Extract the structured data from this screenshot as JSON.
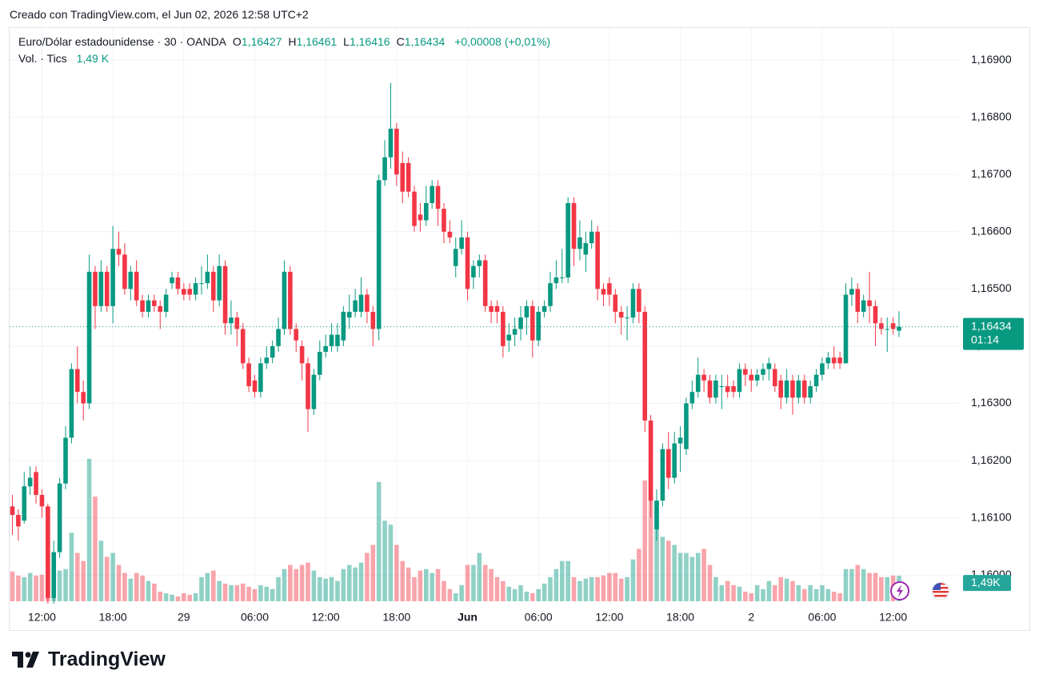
{
  "header": {
    "created": "Creado con TradingView.com, el Jun 02, 2026 12:58 UTC+2",
    "brand": "TradingView"
  },
  "chart_data": {
    "type": "candlestick",
    "title": "Euro/Dólar estadounidense · 30 · OANDA",
    "ohlc_legend": [
      {
        "key": "O",
        "value": "1,16427"
      },
      {
        "key": "H",
        "value": "1,16461"
      },
      {
        "key": "L",
        "value": "1,16416"
      },
      {
        "key": "C",
        "value": "1,16434"
      }
    ],
    "change": "+0,00008 (+0,01%)",
    "volume_title": "Vol. · Tics",
    "volume_legend": "1,49 K",
    "last_price_label": "1,16434",
    "countdown": "01:14",
    "last_volume_label": "1,49K",
    "up_color": "#089981",
    "down_color": "#f23645",
    "grid": true,
    "categories": [
      null,
      null,
      null,
      null,
      null,
      "12:00",
      null,
      null,
      null,
      null,
      null,
      null,
      null,
      null,
      null,
      null,
      null,
      "18:00",
      null,
      null,
      null,
      null,
      null,
      null,
      null,
      null,
      null,
      null,
      null,
      "29",
      null,
      null,
      null,
      null,
      null,
      null,
      null,
      null,
      null,
      null,
      null,
      "06:00",
      null,
      null,
      null,
      null,
      null,
      null,
      null,
      null,
      null,
      null,
      null,
      "12:00",
      null,
      null,
      null,
      null,
      null,
      null,
      null,
      null,
      null,
      null,
      null,
      "18:00",
      null,
      null,
      null,
      null,
      null,
      null,
      null,
      null,
      null,
      null,
      null,
      "Jun",
      null,
      null,
      null,
      null,
      null,
      null,
      null,
      null,
      null,
      null,
      null,
      "06:00",
      null,
      null,
      null,
      null,
      null,
      null,
      null,
      null,
      null,
      null,
      null,
      "12:00",
      null,
      null,
      null,
      null,
      null,
      null,
      null,
      null,
      null,
      null,
      null,
      "18:00",
      null,
      null,
      null,
      null,
      null,
      null,
      null,
      null,
      null,
      null,
      null,
      "2",
      null,
      null,
      null,
      null,
      null,
      null,
      null,
      null,
      null,
      null,
      null,
      "06:00",
      null,
      null,
      null,
      null,
      null,
      null,
      null,
      null,
      null,
      null,
      null,
      "12:00",
      null
    ],
    "open": [
      1.1612,
      1.16105,
      1.16095,
      1.16155,
      1.1618,
      1.1614,
      1.1612,
      1.1596,
      1.1604,
      1.1616,
      1.1624,
      1.1636,
      1.1632,
      1.163,
      1.1653,
      1.1647,
      1.1653,
      1.1647,
      1.1657,
      1.1656,
      1.165,
      1.1653,
      1.1648,
      1.1646,
      1.1648,
      1.1647,
      1.1646,
      1.1651,
      1.1652,
      1.165,
      1.165,
      1.1649,
      1.1651,
      1.1651,
      1.1653,
      1.1648,
      1.1654,
      1.1644,
      1.1645,
      1.1643,
      1.1637,
      1.1634,
      1.1632,
      1.1637,
      1.1638,
      1.164,
      1.1643,
      1.1653,
      1.1643,
      1.164,
      1.1637,
      1.1629,
      1.1635,
      1.1639,
      1.164,
      1.164,
      1.1641,
      1.1645,
      1.1646,
      1.1646,
      1.1649,
      1.1646,
      1.1643,
      1.1669,
      1.1673,
      1.1678,
      1.1672,
      1.1672,
      1.1667,
      1.1663,
      1.1662,
      1.1665,
      1.1668,
      1.1664,
      1.166,
      1.1654,
      1.1657,
      1.1659,
      1.1652,
      1.1654,
      1.1655,
      1.1647,
      1.1647,
      1.1646,
      1.1641,
      1.1642,
      1.1643,
      1.1645,
      1.1647,
      1.1641,
      1.1646,
      1.1647,
      1.1651,
      1.1652,
      1.1652,
      1.1665,
      1.1657,
      1.1656,
      1.1658,
      1.166,
      1.165,
      1.1651,
      1.1649,
      1.1646,
      1.1645,
      1.1645,
      1.165,
      1.1646,
      1.1627,
      1.1608,
      1.1613,
      1.1622,
      1.1617,
      1.1623,
      1.1622,
      1.163,
      1.1632,
      1.1635,
      1.1634,
      1.1631,
      1.1633,
      1.1633,
      1.1633,
      1.1632,
      1.1636,
      1.1635,
      1.1634,
      1.1635,
      1.1636,
      1.1636,
      1.1634,
      1.1631,
      1.1634,
      1.1631,
      1.1634,
      1.1631,
      1.1633,
      1.1635,
      1.1637,
      1.1638,
      1.1638,
      1.1637,
      1.1649,
      1.165,
      1.1646,
      1.1648,
      1.1647,
      1.1644,
      1.1643,
      1.1644,
      1.16427
    ],
    "high": [
      1.1614,
      1.16115,
      1.1618,
      1.1619,
      1.1619,
      1.1615,
      1.16125,
      1.1606,
      1.1617,
      1.1626,
      1.1637,
      1.164,
      1.1634,
      1.1656,
      1.1654,
      1.1655,
      1.1654,
      1.1661,
      1.166,
      1.1658,
      1.1654,
      1.1655,
      1.1649,
      1.1649,
      1.1649,
      1.1648,
      1.165,
      1.1653,
      1.1653,
      1.1651,
      1.1651,
      1.1652,
      1.1654,
      1.1656,
      1.1654,
      1.1656,
      1.1655,
      1.1648,
      1.1646,
      1.1644,
      1.1638,
      1.1635,
      1.1638,
      1.164,
      1.1641,
      1.1645,
      1.1655,
      1.1654,
      1.1644,
      1.1641,
      1.1638,
      1.1636,
      1.1641,
      1.1642,
      1.1644,
      1.1644,
      1.1647,
      1.1649,
      1.165,
      1.1652,
      1.165,
      1.1647,
      1.167,
      1.1676,
      1.1686,
      1.1679,
      1.1674,
      1.1673,
      1.1668,
      1.1665,
      1.1668,
      1.1669,
      1.1669,
      1.1665,
      1.1662,
      1.1659,
      1.1662,
      1.166,
      1.1655,
      1.1656,
      1.1656,
      1.1648,
      1.1648,
      1.1647,
      1.1644,
      1.1645,
      1.1647,
      1.1648,
      1.1648,
      1.1647,
      1.1648,
      1.1653,
      1.1655,
      1.1657,
      1.1666,
      1.1666,
      1.1662,
      1.166,
      1.1662,
      1.1661,
      1.1651,
      1.1652,
      1.165,
      1.1647,
      1.1647,
      1.1651,
      1.1651,
      1.1647,
      1.1628,
      1.1615,
      1.1623,
      1.1625,
      1.1625,
      1.1626,
      1.1631,
      1.1634,
      1.1638,
      1.1636,
      1.1635,
      1.1635,
      1.1635,
      1.1635,
      1.1634,
      1.1637,
      1.1637,
      1.1636,
      1.1636,
      1.1637,
      1.1638,
      1.1637,
      1.1635,
      1.1636,
      1.1635,
      1.1635,
      1.1635,
      1.1634,
      1.1636,
      1.1638,
      1.1639,
      1.164,
      1.1639,
      1.1651,
      1.1652,
      1.1651,
      1.1649,
      1.1653,
      1.1648,
      1.1645,
      1.1645,
      1.1645,
      1.16461
    ],
    "low": [
      1.1607,
      1.1606,
      1.1609,
      1.1614,
      1.16125,
      1.161,
      1.1595,
      1.1595,
      1.1603,
      1.1615,
      1.1623,
      1.163,
      1.1627,
      1.1629,
      1.1643,
      1.1646,
      1.1646,
      1.1644,
      1.1654,
      1.1649,
      1.1648,
      1.1647,
      1.1645,
      1.1645,
      1.1646,
      1.1643,
      1.1645,
      1.165,
      1.1649,
      1.1648,
      1.1648,
      1.1648,
      1.1649,
      1.165,
      1.1646,
      1.1647,
      1.1642,
      1.1642,
      1.164,
      1.1636,
      1.1632,
      1.1631,
      1.1631,
      1.1636,
      1.1637,
      1.1639,
      1.1642,
      1.1642,
      1.1639,
      1.1634,
      1.1625,
      1.1628,
      1.1634,
      1.1638,
      1.1639,
      1.1639,
      1.164,
      1.1643,
      1.1645,
      1.1645,
      1.1644,
      1.164,
      1.1641,
      1.1668,
      1.1671,
      1.1668,
      1.1665,
      1.1666,
      1.166,
      1.166,
      1.1661,
      1.1664,
      1.1661,
      1.1658,
      1.1658,
      1.1652,
      1.1656,
      1.1648,
      1.165,
      1.1652,
      1.1646,
      1.1644,
      1.1644,
      1.1638,
      1.1639,
      1.164,
      1.1641,
      1.1642,
      1.1638,
      1.164,
      1.1645,
      1.1646,
      1.165,
      1.1651,
      1.1651,
      1.1654,
      1.1655,
      1.1653,
      1.1657,
      1.1648,
      1.1647,
      1.1647,
      1.1644,
      1.1642,
      1.1641,
      1.1644,
      1.1644,
      1.1625,
      1.161,
      1.1606,
      1.1612,
      1.1615,
      1.1616,
      1.1618,
      1.1621,
      1.1629,
      1.1631,
      1.1632,
      1.163,
      1.163,
      1.1629,
      1.1631,
      1.1631,
      1.1631,
      1.1633,
      1.1632,
      1.1633,
      1.1634,
      1.1634,
      1.1632,
      1.1629,
      1.163,
      1.1628,
      1.163,
      1.163,
      1.163,
      1.1632,
      1.1634,
      1.1636,
      1.1636,
      1.1636,
      1.1637,
      1.1647,
      1.1644,
      1.1645,
      1.1644,
      1.164,
      1.1642,
      1.1639,
      1.1642,
      1.16416
    ],
    "close": [
      1.16105,
      1.16085,
      1.16155,
      1.1617,
      1.1614,
      1.1612,
      1.1596,
      1.1604,
      1.1616,
      1.1624,
      1.1636,
      1.1632,
      1.163,
      1.1653,
      1.1647,
      1.1653,
      1.1647,
      1.1657,
      1.1656,
      1.165,
      1.1653,
      1.1648,
      1.1646,
      1.1648,
      1.1647,
      1.1646,
      1.1649,
      1.1652,
      1.165,
      1.1649,
      1.1649,
      1.1651,
      1.1651,
      1.1653,
      1.1648,
      1.1654,
      1.1644,
      1.1645,
      1.1643,
      1.1637,
      1.1633,
      1.1632,
      1.1637,
      1.1638,
      1.164,
      1.1643,
      1.1653,
      1.1643,
      1.1641,
      1.1637,
      1.1629,
      1.1635,
      1.1639,
      1.164,
      1.1642,
      1.1642,
      1.1646,
      1.1646,
      1.1648,
      1.1649,
      1.1646,
      1.1643,
      1.1669,
      1.1673,
      1.1678,
      1.167,
      1.1667,
      1.1667,
      1.1661,
      1.1662,
      1.1665,
      1.1668,
      1.1664,
      1.166,
      1.1659,
      1.1657,
      1.1659,
      1.165,
      1.1654,
      1.1655,
      1.1647,
      1.1646,
      1.1646,
      1.164,
      1.1642,
      1.1643,
      1.1645,
      1.1647,
      1.1641,
      1.1646,
      1.1647,
      1.1651,
      1.1652,
      1.1652,
      1.1665,
      1.1657,
      1.1659,
      1.1658,
      1.166,
      1.165,
      1.1649,
      1.1649,
      1.1646,
      1.1645,
      1.1645,
      1.165,
      1.1646,
      1.1627,
      1.1613,
      1.1613,
      1.1622,
      1.1617,
      1.1623,
      1.1624,
      1.163,
      1.1632,
      1.1635,
      1.1634,
      1.1631,
      1.1634,
      1.1633,
      1.1632,
      1.1632,
      1.1636,
      1.1635,
      1.1634,
      1.1635,
      1.1636,
      1.1637,
      1.1633,
      1.1631,
      1.1634,
      1.1631,
      1.1634,
      1.1631,
      1.1633,
      1.1635,
      1.1637,
      1.1638,
      1.1637,
      1.1637,
      1.1649,
      1.165,
      1.1646,
      1.1648,
      1.1647,
      1.1644,
      1.1643,
      1.1643,
      1.1643,
      1.16434
    ],
    "volume": [
      1740,
      1500,
      1410,
      1650,
      1500,
      1550,
      1880,
      1650,
      1790,
      1880,
      4000,
      2820,
      2350,
      8320,
      6110,
      3530,
      2590,
      2820,
      2120,
      1650,
      1320,
      1650,
      1500,
      1180,
      1030,
      560,
      470,
      380,
      280,
      470,
      380,
      470,
      1410,
      1650,
      1790,
      1180,
      1030,
      940,
      940,
      1030,
      850,
      710,
      940,
      850,
      710,
      1410,
      1880,
      2120,
      1880,
      2120,
      2260,
      1790,
      1410,
      1320,
      1410,
      1180,
      1880,
      2120,
      1970,
      2260,
      2820,
      3290,
      6960,
      4700,
      4470,
      3290,
      2350,
      1970,
      1410,
      1790,
      1880,
      1650,
      1880,
      1180,
      710,
      470,
      940,
      2120,
      2120,
      2820,
      2120,
      1880,
      1410,
      1180,
      850,
      710,
      940,
      560,
      470,
      710,
      1030,
      1410,
      1880,
      2350,
      2350,
      1410,
      1180,
      1320,
      1410,
      1410,
      1500,
      1650,
      1650,
      1320,
      1410,
      2440,
      3060,
      7050,
      7760,
      5880,
      3760,
      3530,
      3290,
      2820,
      2820,
      2590,
      2820,
      3060,
      2120,
      1410,
      940,
      1180,
      940,
      850,
      560,
      470,
      940,
      710,
      1180,
      940,
      1410,
      1320,
      1180,
      940,
      710,
      940,
      710,
      940,
      710,
      560,
      470,
      1880,
      1880,
      2120,
      1880,
      1650,
      1650,
      1410,
      1410,
      1500,
      1490
    ],
    "ylim": [
      1.1595,
      1.16956
    ],
    "yticks": [
      {
        "value": 1.16,
        "label": "1,16000"
      },
      {
        "value": 1.161,
        "label": "1,16100"
      },
      {
        "value": 1.162,
        "label": "1,16200"
      },
      {
        "value": 1.163,
        "label": "1,16300"
      },
      {
        "value": 1.164,
        "label": "1,16400"
      },
      {
        "value": 1.165,
        "label": "1,16500"
      },
      {
        "value": 1.166,
        "label": "1,16600"
      },
      {
        "value": 1.167,
        "label": "1,16700"
      },
      {
        "value": 1.168,
        "label": "1,16800"
      },
      {
        "value": 1.169,
        "label": "1,16900"
      }
    ],
    "volume_ylim": [
      0,
      14000
    ]
  }
}
